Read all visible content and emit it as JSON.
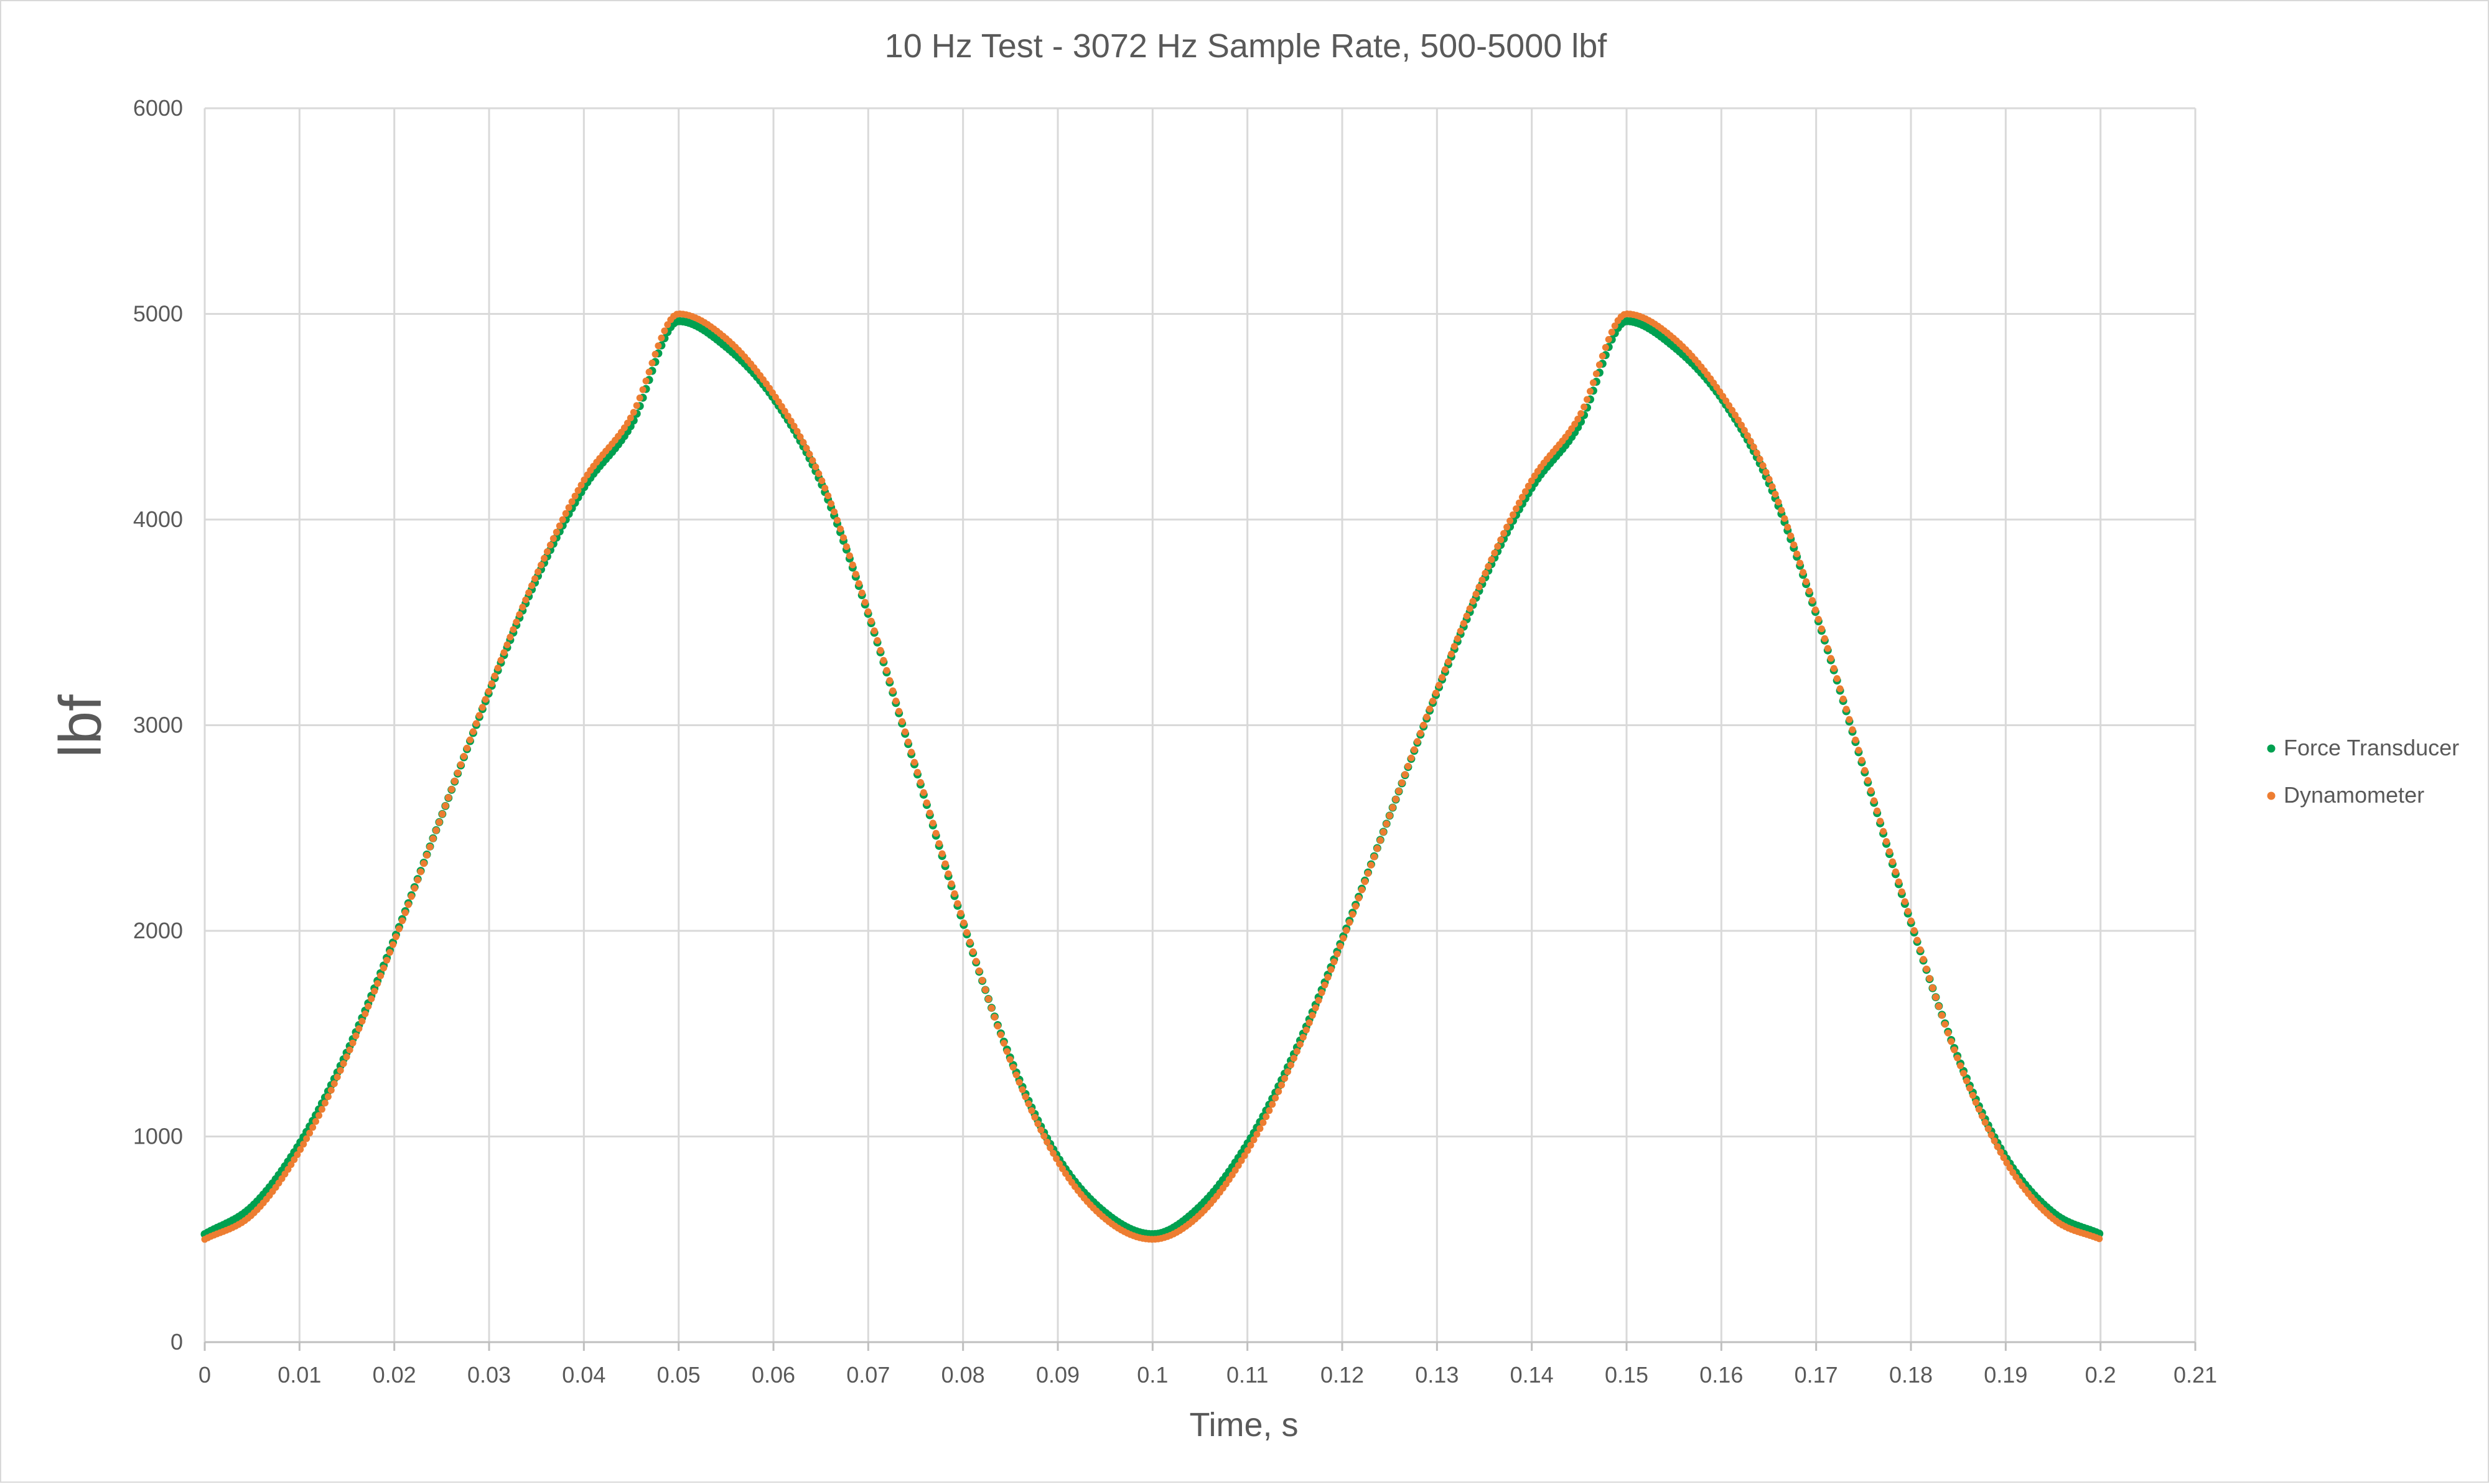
{
  "chart_data": {
    "type": "scatter",
    "title": "10 Hz Test - 3072 Hz Sample Rate, 500-5000 lbf",
    "xlabel": "Time, s",
    "ylabel": "lbf",
    "xlim": [
      0,
      0.21
    ],
    "ylim": [
      0,
      6000
    ],
    "x_ticks": [
      "0",
      "0.01",
      "0.02",
      "0.03",
      "0.04",
      "0.05",
      "0.06",
      "0.07",
      "0.08",
      "0.09",
      "0.1",
      "0.11",
      "0.12",
      "0.13",
      "0.14",
      "0.15",
      "0.16",
      "0.17",
      "0.18",
      "0.19",
      "0.2",
      "0.21"
    ],
    "y_ticks": [
      "0",
      "1000",
      "2000",
      "3000",
      "4000",
      "5000",
      "6000"
    ],
    "grid": true,
    "legend_position": "right",
    "series": [
      {
        "name": "Force Transducer",
        "color": "#00a050",
        "x": [
          0,
          0.005,
          0.01,
          0.015,
          0.02,
          0.025,
          0.03,
          0.035,
          0.04,
          0.045,
          0.05,
          0.055,
          0.06,
          0.065,
          0.07,
          0.075,
          0.08,
          0.085,
          0.09,
          0.095,
          0.1,
          0.105,
          0.11,
          0.115,
          0.12,
          0.125,
          0.13,
          0.135,
          0.14,
          0.145,
          0.15,
          0.155,
          0.16,
          0.165,
          0.17,
          0.175,
          0.18,
          0.185,
          0.19,
          0.195,
          0.2
        ],
        "y": [
          525,
          660,
          965,
          1410,
          1960,
          2560,
          3160,
          3710,
          4155,
          4460,
          4965,
          4840,
          4590,
          4180,
          3540,
          2790,
          2040,
          1380,
          900,
          630,
          525,
          660,
          965,
          1410,
          1960,
          2560,
          3160,
          3710,
          4155,
          4460,
          4965,
          4840,
          4590,
          4180,
          3540,
          2790,
          2040,
          1380,
          900,
          630,
          525
        ]
      },
      {
        "name": "Dynamometer",
        "color": "#ed7d31",
        "x": [
          0,
          0.005,
          0.01,
          0.015,
          0.02,
          0.025,
          0.03,
          0.035,
          0.04,
          0.045,
          0.05,
          0.055,
          0.06,
          0.065,
          0.07,
          0.075,
          0.08,
          0.085,
          0.09,
          0.095,
          0.1,
          0.105,
          0.11,
          0.115,
          0.12,
          0.125,
          0.13,
          0.135,
          0.14,
          0.145,
          0.15,
          0.155,
          0.16,
          0.165,
          0.17,
          0.175,
          0.18,
          0.185,
          0.19,
          0.195,
          0.2
        ],
        "y": [
          500,
          620,
          930,
          1390,
          1950,
          2560,
          3170,
          3730,
          4190,
          4500,
          5000,
          4880,
          4610,
          4200,
          3550,
          2800,
          2050,
          1370,
          880,
          600,
          500,
          620,
          930,
          1390,
          1950,
          2560,
          3170,
          3730,
          4190,
          4500,
          5000,
          4880,
          4610,
          4200,
          3550,
          2800,
          2050,
          1370,
          880,
          600,
          500
        ]
      }
    ]
  }
}
